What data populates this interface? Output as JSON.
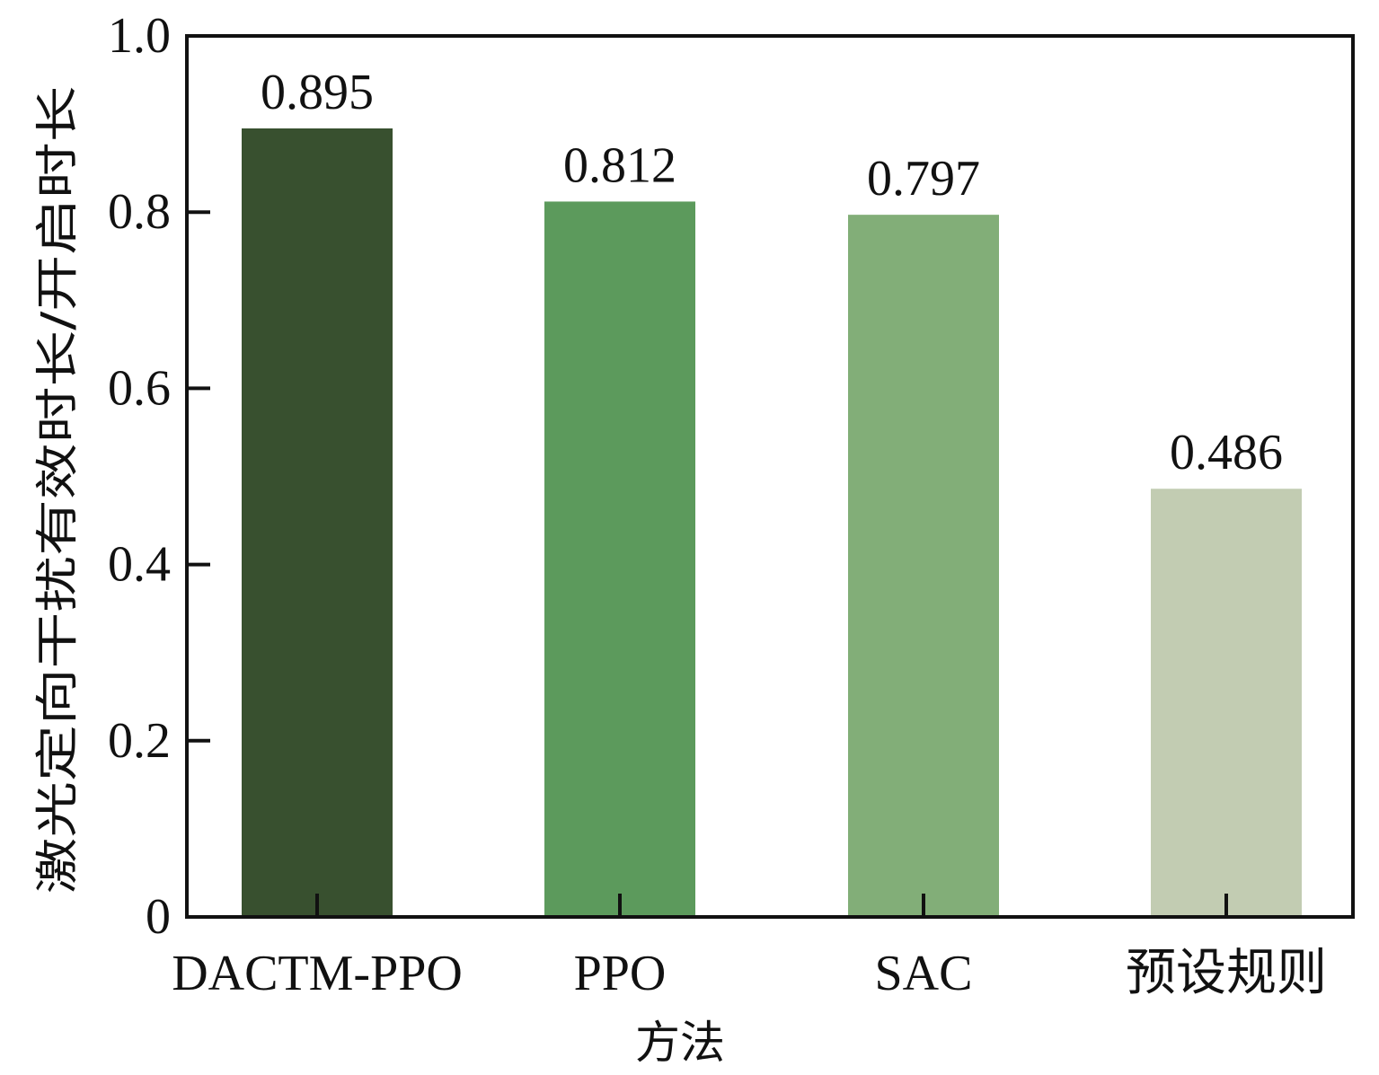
{
  "chart_data": {
    "type": "bar",
    "categories": [
      "DACTM-PPO",
      "PPO",
      "SAC",
      "预设规则"
    ],
    "values": [
      0.895,
      0.812,
      0.797,
      0.486
    ],
    "value_labels": [
      "0.895",
      "0.812",
      "0.797",
      "0.486"
    ],
    "colors": [
      "#38502F",
      "#5C9A5C",
      "#82AE78",
      "#C2CCB2"
    ],
    "xlabel": "方法",
    "ylabel": "激光定向干扰有效时长/开启时长",
    "ylim": [
      0,
      1.0
    ],
    "yticks": [
      0,
      0.2,
      0.4,
      0.6,
      0.8,
      1.0
    ],
    "ytick_labels": [
      "0",
      "0.2",
      "0.4",
      "0.6",
      "0.8",
      "1.0"
    ],
    "grid": false,
    "legend": "none"
  }
}
